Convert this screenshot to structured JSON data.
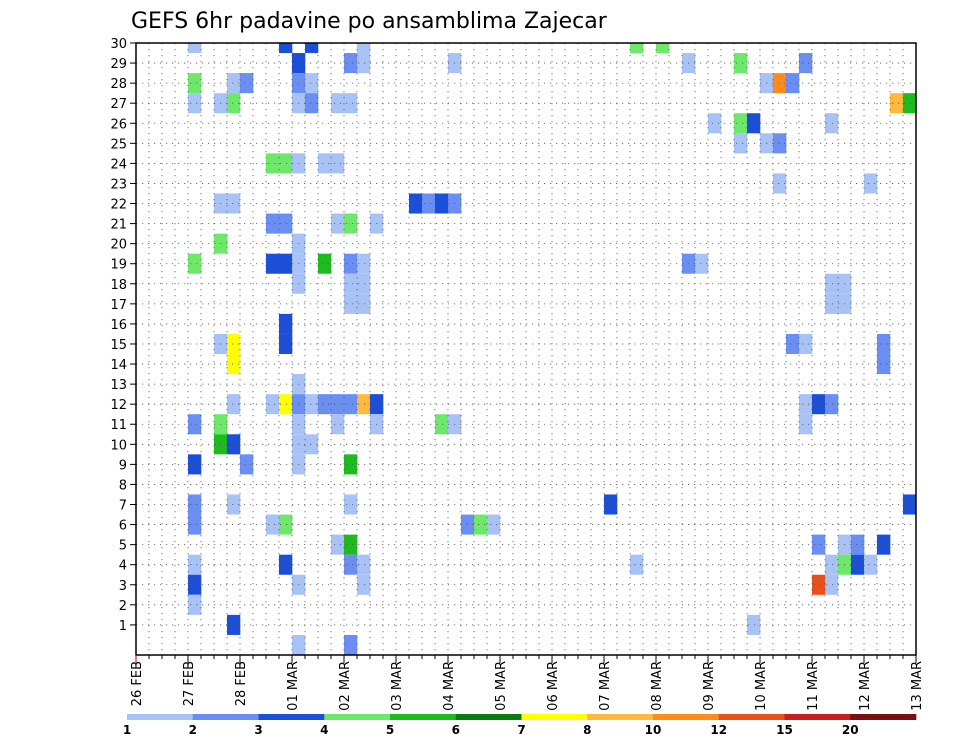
{
  "chart_data": {
    "type": "heatmap",
    "title": "GEFS 6hr padavine po ansamblima Zajecar",
    "y_labels": [
      "1",
      "2",
      "3",
      "4",
      "5",
      "6",
      "7",
      "8",
      "9",
      "10",
      "11",
      "12",
      "13",
      "14",
      "15",
      "16",
      "17",
      "18",
      "19",
      "20",
      "21",
      "22",
      "23",
      "24",
      "25",
      "26",
      "27",
      "28",
      "29",
      "30"
    ],
    "x_labels": [
      "26 FEB",
      "27 FEB",
      "28 FEB",
      "01 MAR",
      "02 MAR",
      "03 MAR",
      "04 MAR",
      "05 MAR",
      "06 MAR",
      "07 MAR",
      "08 MAR",
      "09 MAR",
      "10 MAR",
      "11 MAR",
      "12 MAR",
      "13 MAR"
    ],
    "x_unit": "6-hour step",
    "y_unit": "ensemble member",
    "grid": true,
    "colorbar": {
      "ticks": [
        "1",
        "2",
        "3",
        "4",
        "5",
        "6",
        "7",
        "8",
        "10",
        "12",
        "15",
        "20"
      ],
      "bins": [
        {
          "from": 1,
          "to": 2,
          "color": "#a9c2f6"
        },
        {
          "from": 2,
          "to": 3,
          "color": "#6a8ef2"
        },
        {
          "from": 3,
          "to": 4,
          "color": "#1c4fd8"
        },
        {
          "from": 4,
          "to": 5,
          "color": "#6ee86a"
        },
        {
          "from": 5,
          "to": 6,
          "color": "#1dbb1d"
        },
        {
          "from": 6,
          "to": 7,
          "color": "#0b7a12"
        },
        {
          "from": 7,
          "to": 8,
          "color": "#ffff00"
        },
        {
          "from": 8,
          "to": 10,
          "color": "#ffb93c"
        },
        {
          "from": 10,
          "to": 12,
          "color": "#ff8c1a"
        },
        {
          "from": 12,
          "to": 15,
          "color": "#e8501a"
        },
        {
          "from": 15,
          "to": 20,
          "color": "#c81e1e"
        },
        {
          "from": 20,
          "to": 25,
          "color": "#7a0f0f"
        }
      ]
    },
    "cells": [
      {
        "x": 4,
        "m": 30,
        "v": 1.5
      },
      {
        "x": 11,
        "m": 30,
        "v": 3.5
      },
      {
        "x": 13,
        "m": 30,
        "v": 3.5
      },
      {
        "x": 17,
        "m": 30,
        "v": 1.5
      },
      {
        "x": 38,
        "m": 30,
        "v": 4.5
      },
      {
        "x": 40,
        "m": 30,
        "v": 4.5
      },
      {
        "x": 12,
        "m": 29,
        "v": 3.5
      },
      {
        "x": 16,
        "m": 29,
        "v": 2.5
      },
      {
        "x": 17,
        "m": 29,
        "v": 1.5
      },
      {
        "x": 24,
        "m": 29,
        "v": 1.5
      },
      {
        "x": 42,
        "m": 29,
        "v": 1.5
      },
      {
        "x": 46,
        "m": 29,
        "v": 4.5
      },
      {
        "x": 51,
        "m": 29,
        "v": 2.5
      },
      {
        "x": 4,
        "m": 28,
        "v": 4.5
      },
      {
        "x": 7,
        "m": 28,
        "v": 1.5
      },
      {
        "x": 8,
        "m": 28,
        "v": 2.5
      },
      {
        "x": 12,
        "m": 28,
        "v": 2.5
      },
      {
        "x": 13,
        "m": 28,
        "v": 1.5
      },
      {
        "x": 48,
        "m": 28,
        "v": 1.5
      },
      {
        "x": 49,
        "m": 28,
        "v": 11
      },
      {
        "x": 50,
        "m": 28,
        "v": 2.5
      },
      {
        "x": 4,
        "m": 27,
        "v": 1.5
      },
      {
        "x": 6,
        "m": 27,
        "v": 1.5
      },
      {
        "x": 7,
        "m": 27,
        "v": 4.5
      },
      {
        "x": 12,
        "m": 27,
        "v": 1.5
      },
      {
        "x": 13,
        "m": 27,
        "v": 2.5
      },
      {
        "x": 15,
        "m": 27,
        "v": 1.5
      },
      {
        "x": 16,
        "m": 27,
        "v": 1.5
      },
      {
        "x": 58,
        "m": 27,
        "v": 9
      },
      {
        "x": 59,
        "m": 27,
        "v": 5.5
      },
      {
        "x": 44,
        "m": 26,
        "v": 1.5
      },
      {
        "x": 46,
        "m": 26,
        "v": 4.5
      },
      {
        "x": 47,
        "m": 26,
        "v": 3.5
      },
      {
        "x": 53,
        "m": 26,
        "v": 1.5
      },
      {
        "x": 46,
        "m": 25,
        "v": 1.5
      },
      {
        "x": 48,
        "m": 25,
        "v": 1.5
      },
      {
        "x": 49,
        "m": 25,
        "v": 2.5
      },
      {
        "x": 10,
        "m": 24,
        "v": 4.5
      },
      {
        "x": 11,
        "m": 24,
        "v": 4.5
      },
      {
        "x": 12,
        "m": 24,
        "v": 1.5
      },
      {
        "x": 14,
        "m": 24,
        "v": 1.5
      },
      {
        "x": 15,
        "m": 24,
        "v": 1.5
      },
      {
        "x": 49,
        "m": 23,
        "v": 1.5
      },
      {
        "x": 56,
        "m": 23,
        "v": 1.5
      },
      {
        "x": 6,
        "m": 22,
        "v": 1.5
      },
      {
        "x": 7,
        "m": 22,
        "v": 1.5
      },
      {
        "x": 21,
        "m": 22,
        "v": 3.5
      },
      {
        "x": 22,
        "m": 22,
        "v": 2.5
      },
      {
        "x": 23,
        "m": 22,
        "v": 3.5
      },
      {
        "x": 24,
        "m": 22,
        "v": 2.5
      },
      {
        "x": 10,
        "m": 21,
        "v": 2.5
      },
      {
        "x": 11,
        "m": 21,
        "v": 2.5
      },
      {
        "x": 15,
        "m": 21,
        "v": 1.5
      },
      {
        "x": 16,
        "m": 21,
        "v": 4.5
      },
      {
        "x": 18,
        "m": 21,
        "v": 1.5
      },
      {
        "x": 6,
        "m": 20,
        "v": 4.5
      },
      {
        "x": 12,
        "m": 20,
        "v": 1.5
      },
      {
        "x": 4,
        "m": 19,
        "v": 4.5
      },
      {
        "x": 10,
        "m": 19,
        "v": 3.5
      },
      {
        "x": 11,
        "m": 19,
        "v": 3.5
      },
      {
        "x": 12,
        "m": 19,
        "v": 1.5
      },
      {
        "x": 14,
        "m": 19,
        "v": 5.5
      },
      {
        "x": 16,
        "m": 19,
        "v": 2.5
      },
      {
        "x": 17,
        "m": 19,
        "v": 1.5
      },
      {
        "x": 42,
        "m": 19,
        "v": 2.5
      },
      {
        "x": 43,
        "m": 19,
        "v": 1.5
      },
      {
        "x": 12,
        "m": 18,
        "v": 1.5
      },
      {
        "x": 16,
        "m": 18,
        "v": 1.5
      },
      {
        "x": 17,
        "m": 18,
        "v": 1.5
      },
      {
        "x": 53,
        "m": 18,
        "v": 1.5
      },
      {
        "x": 54,
        "m": 18,
        "v": 1.5
      },
      {
        "x": 16,
        "m": 17,
        "v": 1.5
      },
      {
        "x": 17,
        "m": 17,
        "v": 1.5
      },
      {
        "x": 53,
        "m": 17,
        "v": 1.5
      },
      {
        "x": 54,
        "m": 17,
        "v": 1.5
      },
      {
        "x": 11,
        "m": 16,
        "v": 3.5
      },
      {
        "x": 11,
        "m": 15,
        "v": 3.5
      },
      {
        "x": 6,
        "m": 15,
        "v": 1.5
      },
      {
        "x": 7,
        "m": 15,
        "v": 7.5
      },
      {
        "x": 50,
        "m": 15,
        "v": 2.5
      },
      {
        "x": 51,
        "m": 15,
        "v": 1.5
      },
      {
        "x": 57,
        "m": 15,
        "v": 2.5
      },
      {
        "x": 7,
        "m": 14,
        "v": 7.5
      },
      {
        "x": 57,
        "m": 14,
        "v": 2.5
      },
      {
        "x": 12,
        "m": 13,
        "v": 1.5
      },
      {
        "x": 7,
        "m": 12,
        "v": 1.5
      },
      {
        "x": 10,
        "m": 12,
        "v": 1.5
      },
      {
        "x": 11,
        "m": 12,
        "v": 7.5
      },
      {
        "x": 12,
        "m": 12,
        "v": 2.5
      },
      {
        "x": 13,
        "m": 12,
        "v": 1.5
      },
      {
        "x": 14,
        "m": 12,
        "v": 2.5
      },
      {
        "x": 15,
        "m": 12,
        "v": 2.5
      },
      {
        "x": 16,
        "m": 12,
        "v": 2.5
      },
      {
        "x": 17,
        "m": 12,
        "v": 9
      },
      {
        "x": 18,
        "m": 12,
        "v": 3.5
      },
      {
        "x": 51,
        "m": 12,
        "v": 1.5
      },
      {
        "x": 52,
        "m": 12,
        "v": 3.5
      },
      {
        "x": 53,
        "m": 12,
        "v": 2.5
      },
      {
        "x": 4,
        "m": 11,
        "v": 2.5
      },
      {
        "x": 6,
        "m": 11,
        "v": 4.5
      },
      {
        "x": 12,
        "m": 11,
        "v": 1.5
      },
      {
        "x": 15,
        "m": 11,
        "v": 1.5
      },
      {
        "x": 18,
        "m": 11,
        "v": 1.5
      },
      {
        "x": 23,
        "m": 11,
        "v": 4.5
      },
      {
        "x": 24,
        "m": 11,
        "v": 1.5
      },
      {
        "x": 51,
        "m": 11,
        "v": 1.5
      },
      {
        "x": 6,
        "m": 10,
        "v": 5.5
      },
      {
        "x": 7,
        "m": 10,
        "v": 3.5
      },
      {
        "x": 12,
        "m": 10,
        "v": 1.5
      },
      {
        "x": 13,
        "m": 10,
        "v": 1.5
      },
      {
        "x": 4,
        "m": 9,
        "v": 3.5
      },
      {
        "x": 8,
        "m": 9,
        "v": 2.5
      },
      {
        "x": 12,
        "m": 9,
        "v": 1.5
      },
      {
        "x": 16,
        "m": 9,
        "v": 5.5
      },
      {
        "x": 4,
        "m": 7,
        "v": 2.5
      },
      {
        "x": 7,
        "m": 7,
        "v": 1.5
      },
      {
        "x": 16,
        "m": 7,
        "v": 1.5
      },
      {
        "x": 36,
        "m": 7,
        "v": 3.5
      },
      {
        "x": 59,
        "m": 7,
        "v": 3.5
      },
      {
        "x": 4,
        "m": 6,
        "v": 2.5
      },
      {
        "x": 10,
        "m": 6,
        "v": 1.5
      },
      {
        "x": 11,
        "m": 6,
        "v": 4.5
      },
      {
        "x": 25,
        "m": 6,
        "v": 2.5
      },
      {
        "x": 26,
        "m": 6,
        "v": 4.5
      },
      {
        "x": 27,
        "m": 6,
        "v": 1.5
      },
      {
        "x": 15,
        "m": 5,
        "v": 1.5
      },
      {
        "x": 16,
        "m": 5,
        "v": 5.5
      },
      {
        "x": 52,
        "m": 5,
        "v": 2.5
      },
      {
        "x": 54,
        "m": 5,
        "v": 1.5
      },
      {
        "x": 55,
        "m": 5,
        "v": 2.5
      },
      {
        "x": 57,
        "m": 5,
        "v": 3.5
      },
      {
        "x": 4,
        "m": 4,
        "v": 1.5
      },
      {
        "x": 11,
        "m": 4,
        "v": 3.5
      },
      {
        "x": 16,
        "m": 4,
        "v": 2.5
      },
      {
        "x": 17,
        "m": 4,
        "v": 1.5
      },
      {
        "x": 38,
        "m": 4,
        "v": 1.5
      },
      {
        "x": 53,
        "m": 4,
        "v": 1.5
      },
      {
        "x": 54,
        "m": 4,
        "v": 4.5
      },
      {
        "x": 55,
        "m": 4,
        "v": 3.5
      },
      {
        "x": 56,
        "m": 4,
        "v": 1.5
      },
      {
        "x": 4,
        "m": 3,
        "v": 3.5
      },
      {
        "x": 12,
        "m": 3,
        "v": 1.5
      },
      {
        "x": 17,
        "m": 3,
        "v": 1.5
      },
      {
        "x": 52,
        "m": 3,
        "v": 13
      },
      {
        "x": 53,
        "m": 3,
        "v": 1.5
      },
      {
        "x": 4,
        "m": 2,
        "v": 1.5
      },
      {
        "x": 7,
        "m": 1,
        "v": 3.5
      },
      {
        "x": 47,
        "m": 1,
        "v": 1.5
      },
      {
        "x": 12,
        "m": 0,
        "v": 1.5
      },
      {
        "x": 16,
        "m": 0,
        "v": 2.5
      }
    ]
  }
}
